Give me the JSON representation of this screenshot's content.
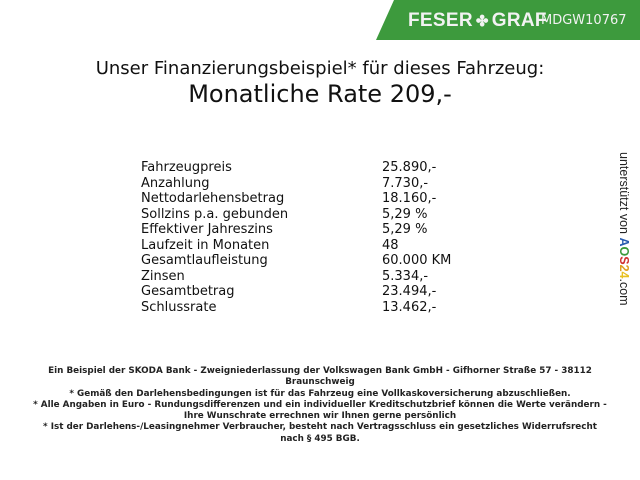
{
  "banner": {
    "brand": "FESER",
    "brand2": "GRAF",
    "code": "MDGW10767",
    "color": "#3d9a3d"
  },
  "header": {
    "line1": "Unser Finanzierungsbeispiel* für dieses Fahrzeug:",
    "line2": "Monatliche Rate 209,-"
  },
  "rows": [
    {
      "label": "Fahrzeugpreis",
      "value": "25.890,-"
    },
    {
      "label": "Anzahlung",
      "value": "7.730,-"
    },
    {
      "label": "Nettodarlehensbetrag",
      "value": "18.160,-"
    },
    {
      "label": "Sollzins p.a. gebunden",
      "value": "5,29 %"
    },
    {
      "label": "Effektiver Jahreszins",
      "value": "5,29 %"
    },
    {
      "label": "Laufzeit in Monaten",
      "value": "48"
    },
    {
      "label": "Gesamtlaufleistung",
      "value": "60.000 KM"
    },
    {
      "label": "Zinsen",
      "value": "5.334,-"
    },
    {
      "label": "Gesamtbetrag",
      "value": "23.494,-"
    },
    {
      "label": "Schlussrate",
      "value": "13.462,-"
    }
  ],
  "side": {
    "prefix": "unterstützt von",
    "logo": "AOS24",
    "suffix": ".com"
  },
  "footer": [
    "Ein Beispiel der SKODA Bank - Zweigniederlassung der Volkswagen Bank GmbH - Gifhorner Straße 57 - 38112 Braunschweig",
    "* Gemäß den Darlehensbedingungen ist für das Fahrzeug eine Vollkaskoversicherung abzuschließen.",
    "* Alle Angaben in Euro - Rundungsdifferenzen und ein individueller Kreditschutzbrief können die Werte verändern - Ihre Wunschrate errechnen wir Ihnen gerne persönlich",
    "* Ist der Darlehens-/Leasingnehmer Verbraucher, besteht nach Vertragsschluss ein gesetzliches Widerrufsrecht nach § 495 BGB."
  ]
}
